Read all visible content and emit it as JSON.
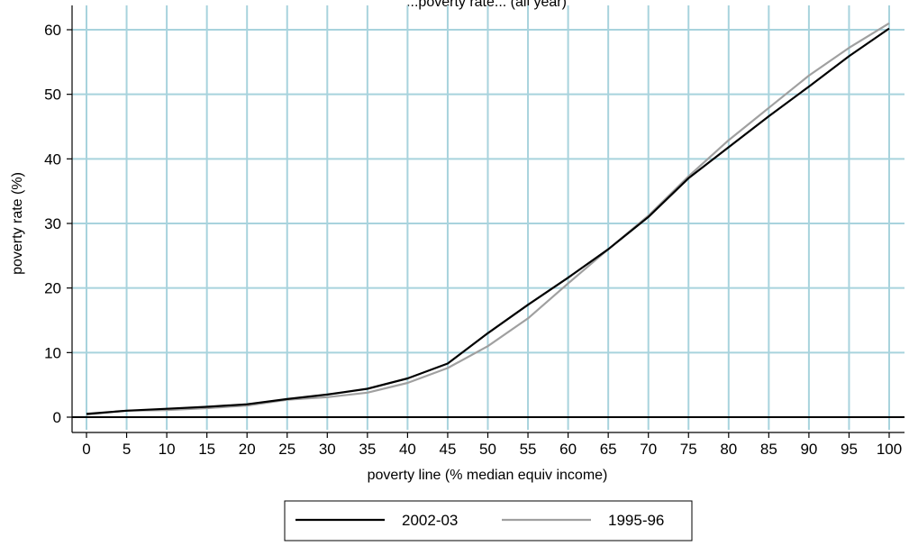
{
  "chart_data": {
    "type": "line",
    "title": "...poverty rate... (all year)",
    "xlabel": "poverty line (% median equiv income)",
    "ylabel": "poverty rate (%)",
    "xlim": [
      0,
      100
    ],
    "ylim": [
      0,
      60
    ],
    "x_ticks": [
      0,
      5,
      10,
      15,
      20,
      25,
      30,
      35,
      40,
      45,
      50,
      55,
      60,
      65,
      70,
      75,
      80,
      85,
      90,
      95,
      100
    ],
    "y_ticks": [
      0,
      10,
      20,
      30,
      40,
      50,
      60
    ],
    "grid": true,
    "grid_color": "#a8d3dd",
    "legend_position": "bottom",
    "series": [
      {
        "name": "2002-03",
        "color": "#000000",
        "x": [
          0,
          5,
          10,
          15,
          20,
          25,
          30,
          35,
          40,
          45,
          50,
          55,
          60,
          65,
          70,
          75,
          80,
          85,
          90,
          95,
          100
        ],
        "values": [
          0.5,
          1.0,
          1.3,
          1.6,
          2.0,
          2.8,
          3.5,
          4.4,
          6.0,
          8.3,
          13.0,
          17.4,
          21.6,
          26.0,
          31.0,
          37.0,
          41.8,
          46.6,
          51.2,
          55.9,
          60.2
        ]
      },
      {
        "name": "1995-96",
        "color": "#a0a0a0",
        "x": [
          0,
          5,
          10,
          15,
          20,
          25,
          30,
          35,
          40,
          45,
          50,
          55,
          60,
          65,
          70,
          75,
          80,
          85,
          90,
          95,
          100
        ],
        "values": [
          0.4,
          1.0,
          1.1,
          1.4,
          1.8,
          2.7,
          3.1,
          3.8,
          5.3,
          7.6,
          11.0,
          15.3,
          20.7,
          26.0,
          31.2,
          37.3,
          42.9,
          47.9,
          52.9,
          57.2,
          61.0
        ]
      }
    ]
  }
}
